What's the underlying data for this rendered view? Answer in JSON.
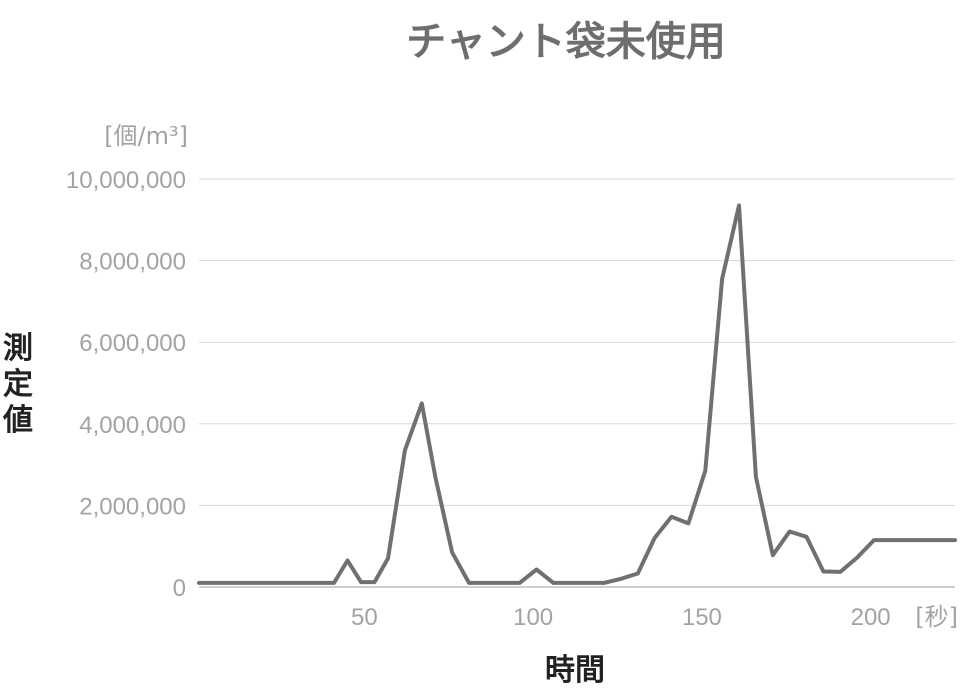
{
  "chart_data": {
    "type": "line",
    "title": "チャント袋未使用",
    "xlabel": "時間",
    "ylabel": "測定値",
    "x_unit": "[秒]",
    "y_unit": "[個/m³]",
    "xlim": [
      1,
      225
    ],
    "ylim": [
      0,
      10000000
    ],
    "x_ticks": [
      50,
      100,
      150,
      200
    ],
    "x_tick_labels": [
      "50",
      "100",
      "150",
      "200"
    ],
    "y_ticks": [
      0,
      2000000,
      4000000,
      6000000,
      8000000,
      10000000
    ],
    "y_tick_labels": [
      "0",
      "2,000,000",
      "4,000,000",
      "6,000,000",
      "8,000,000",
      "10,000,000"
    ],
    "grid": true,
    "series": [
      {
        "color": "#707070",
        "x": [
          1,
          41,
          45,
          49,
          53,
          57,
          62,
          67,
          71,
          76,
          81,
          86,
          91,
          96,
          101,
          106,
          111,
          116,
          121,
          126,
          131,
          136,
          141,
          146,
          151,
          156,
          161,
          166,
          171,
          176,
          181,
          186,
          191,
          196,
          201,
          206,
          211,
          216,
          221,
          225
        ],
        "values": [
          100000,
          100000,
          650000,
          120000,
          120000,
          700000,
          3350000,
          4500000,
          2700000,
          850000,
          100000,
          100000,
          100000,
          100000,
          430000,
          100000,
          100000,
          100000,
          100000,
          200000,
          330000,
          1200000,
          1720000,
          1560000,
          2850000,
          7550000,
          9350000,
          2700000,
          780000,
          1360000,
          1230000,
          380000,
          370000,
          720000,
          1150000,
          1150000,
          1150000,
          1150000,
          1150000,
          1150000
        ]
      }
    ]
  }
}
